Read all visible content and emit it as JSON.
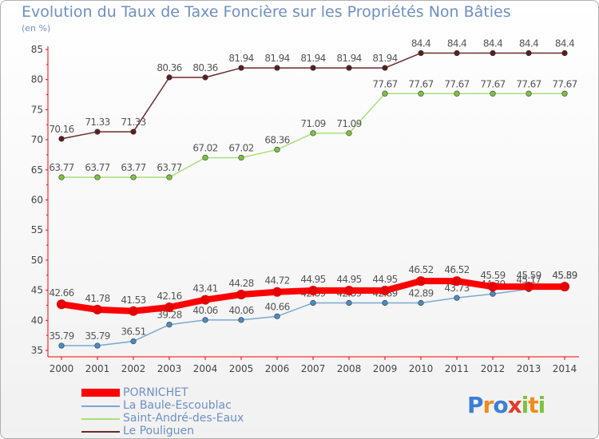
{
  "chart_data": {
    "type": "line",
    "title": "Evolution du Taux de Taxe Foncière sur les Propriétés Non Bâties",
    "unit_label": "(en %)",
    "x": [
      "2000",
      "2001",
      "2002",
      "2003",
      "2004",
      "2005",
      "2006",
      "2007",
      "2008",
      "2009",
      "2010",
      "2011",
      "2012",
      "2013",
      "2014"
    ],
    "ylim": [
      35,
      85
    ],
    "yticks": [
      35,
      40,
      45,
      50,
      55,
      60,
      65,
      70,
      75,
      80,
      85
    ],
    "grid": false,
    "legend_position": "bottom-left",
    "series": [
      {
        "name": "Le Pouliguen",
        "color": "#6b2b2b",
        "point_color": "#5a1e1e",
        "values": [
          70.16,
          71.33,
          71.33,
          80.36,
          80.36,
          81.94,
          81.94,
          81.94,
          81.94,
          81.94,
          84.4,
          84.4,
          84.4,
          84.4,
          84.4
        ],
        "labels": [
          "70.16",
          "71.33",
          "71.33",
          "80.36",
          "80.36",
          "81.94",
          "81.94",
          "81.94",
          "81.94",
          "81.94",
          "84.4",
          "84.4",
          "84.4",
          "84.4",
          "84.4"
        ]
      },
      {
        "name": "Saint-André-des-Eaux",
        "color": "#a8e07a",
        "point_color": "#7dc242",
        "values": [
          63.77,
          63.77,
          63.77,
          63.77,
          67.02,
          67.02,
          68.36,
          71.09,
          71.09,
          77.67,
          77.67,
          77.67,
          77.67,
          77.67,
          77.67
        ],
        "labels": [
          "63.77",
          "63.77",
          "63.77",
          "63.77",
          "67.02",
          "67.02",
          "68.36",
          "71.09",
          "71.09",
          "77.67",
          "77.67",
          "77.67",
          "77.67",
          "77.67",
          "77.67"
        ]
      },
      {
        "name": "La Baule-Escoublac",
        "color": "#7aa8cf",
        "point_color": "#4a8cc4",
        "values": [
          35.79,
          35.79,
          36.51,
          39.28,
          40.06,
          40.06,
          40.66,
          42.89,
          42.89,
          42.89,
          42.89,
          43.73,
          44.39,
          45.17,
          45.89
        ],
        "labels": [
          "35.79",
          "35.79",
          "36.51",
          "39.28",
          "40.06",
          "40.06",
          "40.66",
          "42.89",
          "42.89",
          "42.89",
          "42.89",
          "43.73",
          "44.39",
          "45.17",
          "45.89"
        ]
      },
      {
        "name": "PORNICHET",
        "color": "#ff0000",
        "point_color": "#e60000",
        "values": [
          42.66,
          41.78,
          41.53,
          42.16,
          43.41,
          44.28,
          44.72,
          44.95,
          44.95,
          44.95,
          46.52,
          46.52,
          45.59,
          45.59,
          45.59
        ],
        "labels": [
          "42.66",
          "41.78",
          "41.53",
          "42.16",
          "43.41",
          "44.28",
          "44.72",
          "44.95",
          "44.95",
          "44.95",
          "46.52",
          "46.52",
          "45.59",
          "45.59",
          "45.59"
        ]
      }
    ],
    "legend": [
      {
        "name": "PORNICHET",
        "color": "#ff0000",
        "thickness": "thick"
      },
      {
        "name": "La Baule-Escoublac",
        "color": "#7aa8cf",
        "thickness": "thin"
      },
      {
        "name": "Saint-André-des-Eaux",
        "color": "#a8e07a",
        "thickness": "thin"
      },
      {
        "name": "Le Pouliguen",
        "color": "#6b2b2b",
        "thickness": "thin"
      }
    ]
  },
  "logo": {
    "letters": [
      "P",
      "r",
      "o",
      "x",
      "i",
      "t",
      "i"
    ],
    "colors": [
      "#3a7fd5",
      "#f08a1a",
      "#3a7fd5",
      "#e23b2b",
      "#7cc242",
      "#f08a1a",
      "#7cc242"
    ]
  }
}
